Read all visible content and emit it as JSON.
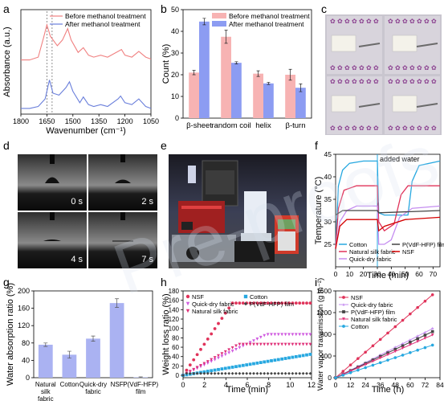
{
  "panel_letters": [
    "a",
    "b",
    "c",
    "d",
    "e",
    "f",
    "g",
    "h",
    "i"
  ],
  "chart_data": [
    {
      "panel": "a",
      "type": "line",
      "xlabel": "Wavenumber (cm⁻¹)",
      "ylabel": "Absorbance (a.u.)",
      "xlim": [
        1800,
        1050
      ],
      "xticks": [
        1800,
        1650,
        1500,
        1350,
        1200,
        1050
      ],
      "reference_lines": [
        1650,
        1620
      ],
      "legend_position": "top-right",
      "series": [
        {
          "name": "Before methanol treatment",
          "color": "#f08080",
          "points": [
            [
              1800,
              0.57
            ],
            [
              1750,
              0.57
            ],
            [
              1700,
              0.6
            ],
            [
              1670,
              0.8
            ],
            [
              1650,
              0.94
            ],
            [
              1630,
              0.82
            ],
            [
              1590,
              0.72
            ],
            [
              1560,
              0.78
            ],
            [
              1530,
              0.9
            ],
            [
              1510,
              0.78
            ],
            [
              1470,
              0.65
            ],
            [
              1440,
              0.7
            ],
            [
              1410,
              0.62
            ],
            [
              1380,
              0.6
            ],
            [
              1340,
              0.62
            ],
            [
              1300,
              0.6
            ],
            [
              1240,
              0.66
            ],
            [
              1220,
              0.68
            ],
            [
              1200,
              0.62
            ],
            [
              1160,
              0.6
            ],
            [
              1120,
              0.66
            ],
            [
              1080,
              0.6
            ],
            [
              1050,
              0.58
            ]
          ]
        },
        {
          "name": "After methanol treatment",
          "color": "#6a7fdb",
          "points": [
            [
              1800,
              0.06
            ],
            [
              1750,
              0.06
            ],
            [
              1700,
              0.08
            ],
            [
              1660,
              0.16
            ],
            [
              1635,
              0.36
            ],
            [
              1615,
              0.22
            ],
            [
              1580,
              0.2
            ],
            [
              1540,
              0.28
            ],
            [
              1520,
              0.34
            ],
            [
              1500,
              0.24
            ],
            [
              1460,
              0.12
            ],
            [
              1440,
              0.18
            ],
            [
              1410,
              0.1
            ],
            [
              1380,
              0.08
            ],
            [
              1340,
              0.1
            ],
            [
              1300,
              0.08
            ],
            [
              1240,
              0.16
            ],
            [
              1225,
              0.19
            ],
            [
              1200,
              0.12
            ],
            [
              1160,
              0.1
            ],
            [
              1120,
              0.16
            ],
            [
              1080,
              0.08
            ],
            [
              1050,
              0.06
            ]
          ]
        }
      ]
    },
    {
      "panel": "b",
      "type": "bar",
      "ylabel": "Count (%)",
      "ylim": [
        0,
        50
      ],
      "yticks": [
        0,
        10,
        20,
        30,
        40,
        50
      ],
      "categories": [
        "β-sheet",
        "random coil",
        "helix",
        "β-turn"
      ],
      "legend_position": "top-right",
      "series": [
        {
          "name": "Before methanol treatment",
          "color": "#f7b3b3",
          "values": [
            21,
            37.5,
            20.5,
            20
          ],
          "errors": [
            1,
            3,
            1.3,
            2.5
          ]
        },
        {
          "name": "After methanol treatment",
          "color": "#8c9cf2",
          "values": [
            44.5,
            25.5,
            16,
            14
          ],
          "errors": [
            1.5,
            0.5,
            0.5,
            1.8
          ]
        }
      ]
    },
    {
      "panel": "f",
      "type": "line",
      "xlabel": "Time (min)",
      "ylabel": "Temperature (°C)",
      "xlim": [
        0,
        75
      ],
      "ylim": [
        20,
        45
      ],
      "xticks": [
        0,
        10,
        20,
        30,
        40,
        50,
        60,
        70
      ],
      "yticks": [
        25,
        30,
        35,
        40,
        45
      ],
      "annotation": {
        "text": "added water",
        "x": 30
      },
      "series": [
        {
          "name": "Cotton",
          "color": "#27a8e0",
          "points": [
            [
              0,
              24
            ],
            [
              2,
              38
            ],
            [
              5,
              41.5
            ],
            [
              10,
              43
            ],
            [
              20,
              43.5
            ],
            [
              30,
              43.5
            ],
            [
              31,
              32
            ],
            [
              35,
              31.5
            ],
            [
              45,
              31.5
            ],
            [
              52,
              31.5
            ],
            [
              55,
              39
            ],
            [
              60,
              42.5
            ],
            [
              75,
              43.5
            ]
          ]
        },
        {
          "name": "Natural silk fabric",
          "color": "#e0335a",
          "points": [
            [
              0,
              24
            ],
            [
              2,
              33
            ],
            [
              6,
              37
            ],
            [
              15,
              38
            ],
            [
              30,
              38
            ],
            [
              31,
              30
            ],
            [
              35,
              28
            ],
            [
              42,
              29.5
            ],
            [
              47,
              36
            ],
            [
              52,
              38
            ],
            [
              75,
              38
            ]
          ]
        },
        {
          "name": "Quick-dry fabric",
          "color": "#c58ef0",
          "points": [
            [
              0,
              24
            ],
            [
              3,
              30
            ],
            [
              8,
              32.5
            ],
            [
              15,
              33.5
            ],
            [
              30,
              33.5
            ],
            [
              31,
              25
            ],
            [
              35,
              25
            ],
            [
              40,
              26
            ],
            [
              46,
              31
            ],
            [
              55,
              33
            ],
            [
              75,
              33.5
            ]
          ]
        },
        {
          "name": "P(VdF-HFP) film",
          "color": "#444444",
          "points": [
            [
              0,
              31.5
            ],
            [
              5,
              32.5
            ],
            [
              30,
              32.5
            ],
            [
              31,
              32
            ],
            [
              75,
              32.5
            ]
          ]
        },
        {
          "name": "NSF",
          "color": "#d40000",
          "points": [
            [
              0,
              24
            ],
            [
              3,
              29
            ],
            [
              8,
              30.5
            ],
            [
              30,
              30.5
            ],
            [
              31,
              28
            ],
            [
              35,
              29
            ],
            [
              50,
              30.5
            ],
            [
              75,
              31
            ]
          ]
        }
      ]
    },
    {
      "panel": "g",
      "type": "bar",
      "ylabel": "Water absorption ratio (%)",
      "ylim": [
        0,
        200
      ],
      "yticks": [
        0,
        40,
        80,
        120,
        160,
        200
      ],
      "categories": [
        "Natural silk fabric",
        "Cotton",
        "Quick-dry fabric",
        "NSF",
        "P(VdF-HFP) film"
      ],
      "series": [
        {
          "name": "",
          "color": "#aab2f2",
          "values": [
            76,
            53,
            90,
            172,
            1
          ],
          "errors": [
            4,
            8,
            6,
            10,
            1
          ]
        }
      ]
    },
    {
      "panel": "h",
      "type": "scatter",
      "xlabel": "Time (min)",
      "ylabel": "Weight loss ratio (%)",
      "xlim": [
        0,
        12
      ],
      "ylim": [
        -5,
        180
      ],
      "xticks": [
        0,
        2,
        4,
        6,
        8,
        10,
        12
      ],
      "yticks": [
        0,
        20,
        40,
        60,
        80,
        100,
        120,
        140,
        160,
        180
      ],
      "series": [
        {
          "name": "NSF",
          "color": "#e0335a",
          "marker": "circle",
          "plateau": 154,
          "t_end": 4.6
        },
        {
          "name": "Quick-dry fabric",
          "color": "#d05ce0",
          "marker": "triangle-down",
          "plateau": 87,
          "t_end": 7.8
        },
        {
          "name": "Natural silk fabric",
          "color": "#e0337a",
          "marker": "triangle-down",
          "plateau": 66,
          "t_end": 5.2
        },
        {
          "name": "Cotton",
          "color": "#27a8e0",
          "marker": "square",
          "plateau": 49,
          "t_end": 13
        },
        {
          "name": "P(VdF-HFP) film",
          "color": "#444444",
          "marker": "diamond",
          "plateau": 4,
          "t_end": 0.1
        }
      ]
    },
    {
      "panel": "i",
      "type": "line",
      "xlabel": "Time (h)",
      "ylabel": "Water vapor transmission (g m⁻²)",
      "xlim": [
        0,
        84
      ],
      "ylim": [
        0,
        1600
      ],
      "xticks": [
        0,
        12,
        24,
        36,
        48,
        60,
        72,
        84
      ],
      "yticks": [
        0,
        400,
        800,
        1200,
        1600
      ],
      "series": [
        {
          "name": "NSF",
          "color": "#e0335a",
          "marker": "circle",
          "slope": 19.6
        },
        {
          "name": "Quick-dry fabric",
          "color": "#c58ef0",
          "marker": "star",
          "slope": 11.6
        },
        {
          "name": "P(VdF-HFP) film",
          "color": "#444444",
          "marker": "square",
          "slope": 10.9
        },
        {
          "name": "Natural silk fabric",
          "color": "#e0337a",
          "marker": "triangle-down",
          "slope": 10.1
        },
        {
          "name": "Cotton",
          "color": "#27a8e0",
          "marker": "circle",
          "slope": 7.7
        }
      ]
    }
  ],
  "panel_d_timestamps": [
    "0 s",
    "2 s",
    "4 s",
    "7 s"
  ]
}
